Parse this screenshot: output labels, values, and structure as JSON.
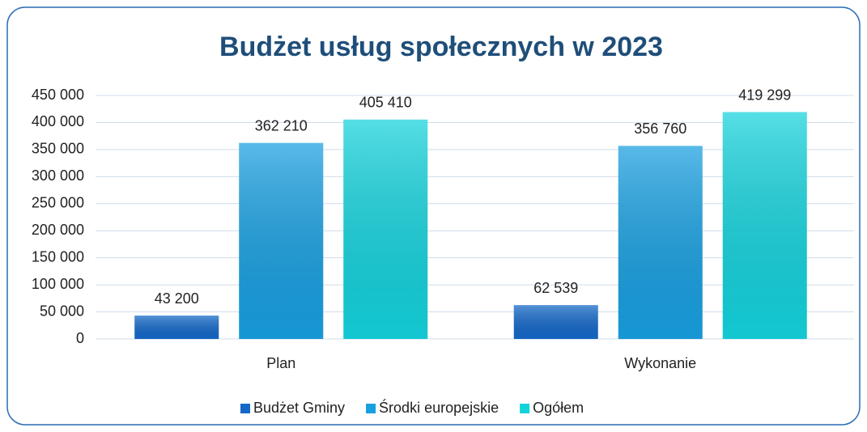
{
  "chart_data": {
    "type": "bar",
    "title": "Budżet usług społecznych w 2023",
    "categories": [
      "Plan",
      "Wykonanie"
    ],
    "series": [
      {
        "name": "Budżet Gminy",
        "color": "#1468c8",
        "values": [
          43200,
          62539
        ],
        "value_labels": [
          "43 200",
          "62 539"
        ]
      },
      {
        "name": "Środki europejskie",
        "color": "#189fe0",
        "values": [
          362210,
          356760
        ],
        "value_labels": [
          "362 210",
          "356 760"
        ]
      },
      {
        "name": "Ogółem",
        "color": "#14d2dc",
        "values": [
          405410,
          419299
        ],
        "value_labels": [
          "405 410",
          "419 299"
        ]
      }
    ],
    "ylim": [
      0,
      450000
    ],
    "yticks": [
      0,
      {
        "value": 50000,
        "label": "50 000"
      },
      {
        "value": 100000,
        "label": "100 000"
      },
      {
        "value": 150000,
        "label": "150 000"
      },
      {
        "value": 200000,
        "label": "200 000"
      },
      {
        "value": 250000,
        "label": "250 000"
      },
      {
        "value": 300000,
        "label": "300 000"
      },
      {
        "value": 350000,
        "label": "350 000"
      },
      {
        "value": 400000,
        "label": "400 000"
      },
      {
        "value": 450000,
        "label": "450 000"
      }
    ],
    "grid": true,
    "legend": "bottom"
  }
}
